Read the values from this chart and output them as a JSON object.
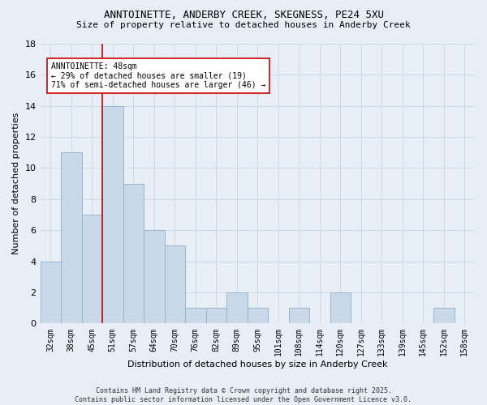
{
  "title1": "ANNTOINETTE, ANDERBY CREEK, SKEGNESS, PE24 5XU",
  "title2": "Size of property relative to detached houses in Anderby Creek",
  "xlabel": "Distribution of detached houses by size in Anderby Creek",
  "ylabel": "Number of detached properties",
  "bar_labels": [
    "32sqm",
    "38sqm",
    "45sqm",
    "51sqm",
    "57sqm",
    "64sqm",
    "70sqm",
    "76sqm",
    "82sqm",
    "89sqm",
    "95sqm",
    "101sqm",
    "108sqm",
    "114sqm",
    "120sqm",
    "127sqm",
    "133sqm",
    "139sqm",
    "145sqm",
    "152sqm",
    "158sqm"
  ],
  "bar_values": [
    4,
    11,
    7,
    14,
    9,
    6,
    5,
    1,
    1,
    2,
    1,
    0,
    1,
    0,
    2,
    0,
    0,
    0,
    0,
    1,
    0
  ],
  "bar_color": "#c9d9ea",
  "bar_edge_color": "#9ab4cc",
  "vline_x": 2.5,
  "vline_color": "#cc0000",
  "annotation_text": "ANNTOINETTE: 48sqm\n← 29% of detached houses are smaller (19)\n71% of semi-detached houses are larger (46) →",
  "annotation_box_color": "#ffffff",
  "annotation_box_edge": "#cc0000",
  "ylim": [
    0,
    18
  ],
  "yticks": [
    0,
    2,
    4,
    6,
    8,
    10,
    12,
    14,
    16,
    18
  ],
  "grid_color": "#d0d8e8",
  "footer": "Contains HM Land Registry data © Crown copyright and database right 2025.\nContains public sector information licensed under the Open Government Licence v3.0.",
  "bg_color": "#e8eef6"
}
